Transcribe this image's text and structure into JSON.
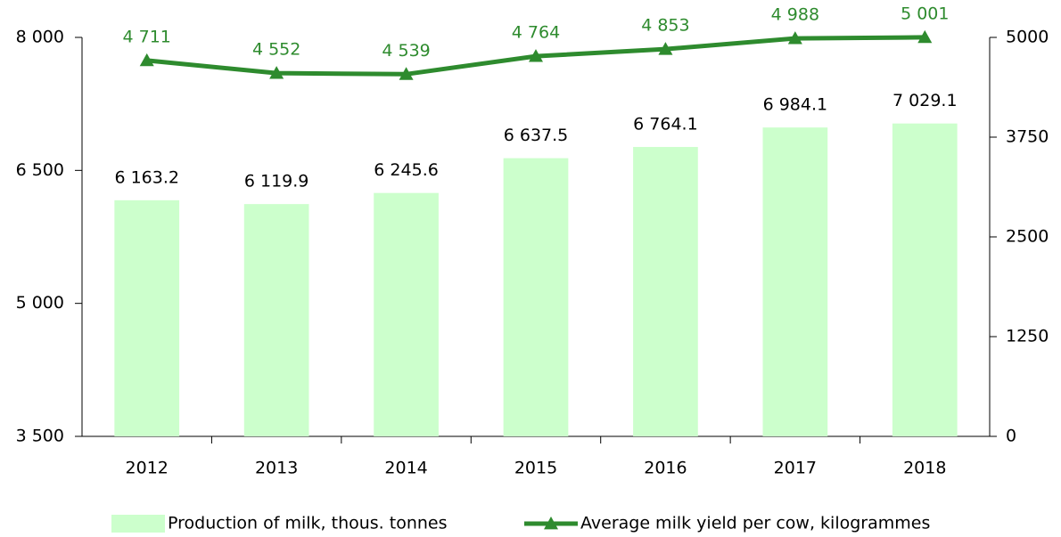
{
  "chart_data": {
    "type": "bar",
    "categories": [
      "2012",
      "2013",
      "2014",
      "2015",
      "2016",
      "2017",
      "2018"
    ],
    "series": [
      {
        "name": "Production of milk, thous. tonnes",
        "type": "bar",
        "color": "#ccffcc",
        "values": [
          6163.2,
          6119.9,
          6245.6,
          6637.5,
          6764.1,
          6984.1,
          7029.1
        ],
        "value_labels": [
          "6 163.2",
          "6 119.9",
          "6 245.6",
          "6 637.5",
          "6 764.1",
          "6 984.1",
          "7 029.1"
        ]
      },
      {
        "name": "Average milk yield per cow, kilogrammes",
        "type": "line",
        "axis": "y2",
        "color": "#2e8b2e",
        "marker": "triangle",
        "values": [
          4711,
          4552,
          4539,
          4764,
          4853,
          4988,
          5001
        ],
        "value_labels": [
          "4 711",
          "4 552",
          "4 539",
          "4 764",
          "4 853",
          "4 988",
          "5 001"
        ]
      }
    ],
    "ylim": [
      3500,
      8000
    ],
    "yticks": [
      {
        "value": 3500,
        "label": "3 500"
      },
      {
        "value": 5000,
        "label": "5 000"
      },
      {
        "value": 6500,
        "label": "6 500"
      },
      {
        "value": 8000,
        "label": "8 000"
      }
    ],
    "y2lim": [
      0,
      5000
    ],
    "y2ticks": [
      0,
      1250,
      2500,
      3750,
      5000
    ],
    "legend": "bottom"
  }
}
